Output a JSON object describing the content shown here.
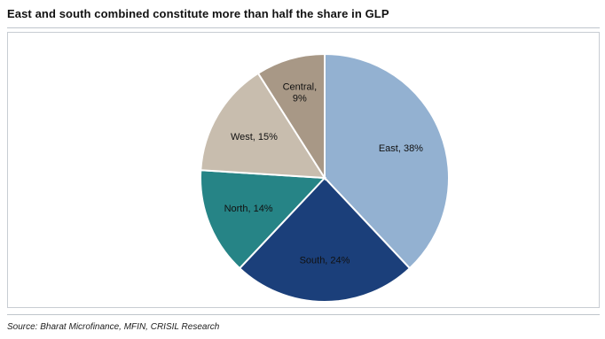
{
  "title": "East and south combined constitute more than half the share in GLP",
  "source": "Source: Bharat Microfinance, MFIN, CRISIL Research",
  "chart_data": {
    "type": "pie",
    "title": "East and south combined constitute more than half the share in GLP",
    "slices": [
      {
        "label": "East",
        "value": 38,
        "display": "East, 38%",
        "color": "#93b1d1"
      },
      {
        "label": "South",
        "value": 24,
        "display": "South, 24%",
        "color": "#1b3f7a"
      },
      {
        "label": "North",
        "value": 14,
        "display": "North, 14%",
        "color": "#268486"
      },
      {
        "label": "West",
        "value": 15,
        "display": "West, 15%",
        "color": "#c8bdae"
      },
      {
        "label": "Central",
        "value": 9,
        "display": "Central,\n9%",
        "color": "#a89886"
      }
    ],
    "start_angle_deg": 0,
    "direction": "clockwise"
  }
}
